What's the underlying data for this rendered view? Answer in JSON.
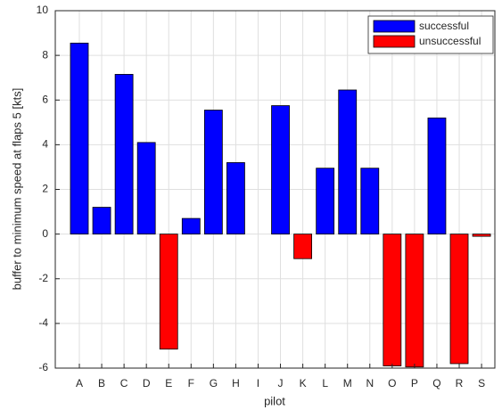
{
  "chart_data": {
    "type": "bar",
    "x_label": "pilot",
    "y_label": "buffer to minimum speed at flaps 5 [kts]",
    "categories": [
      "A",
      "B",
      "C",
      "D",
      "E",
      "F",
      "G",
      "H",
      "I",
      "J",
      "K",
      "L",
      "M",
      "N",
      "O",
      "P",
      "Q",
      "R",
      "S"
    ],
    "series": [
      {
        "name": "successful",
        "color": "#0000ff",
        "values": [
          8.55,
          1.2,
          7.15,
          4.1,
          null,
          0.7,
          5.55,
          3.2,
          null,
          5.75,
          null,
          2.95,
          6.45,
          2.95,
          null,
          null,
          5.2,
          null,
          null
        ]
      },
      {
        "name": "unsuccessful",
        "color": "#ff0000",
        "values": [
          null,
          null,
          null,
          null,
          -5.15,
          null,
          null,
          null,
          null,
          null,
          -1.1,
          null,
          null,
          null,
          -5.9,
          -5.95,
          null,
          -5.8,
          -0.1
        ]
      }
    ],
    "ylim": [
      -6,
      10
    ],
    "yticks": [
      -6,
      -4,
      -2,
      0,
      2,
      4,
      6,
      8,
      10
    ],
    "grid": true,
    "legend": "upper right"
  }
}
